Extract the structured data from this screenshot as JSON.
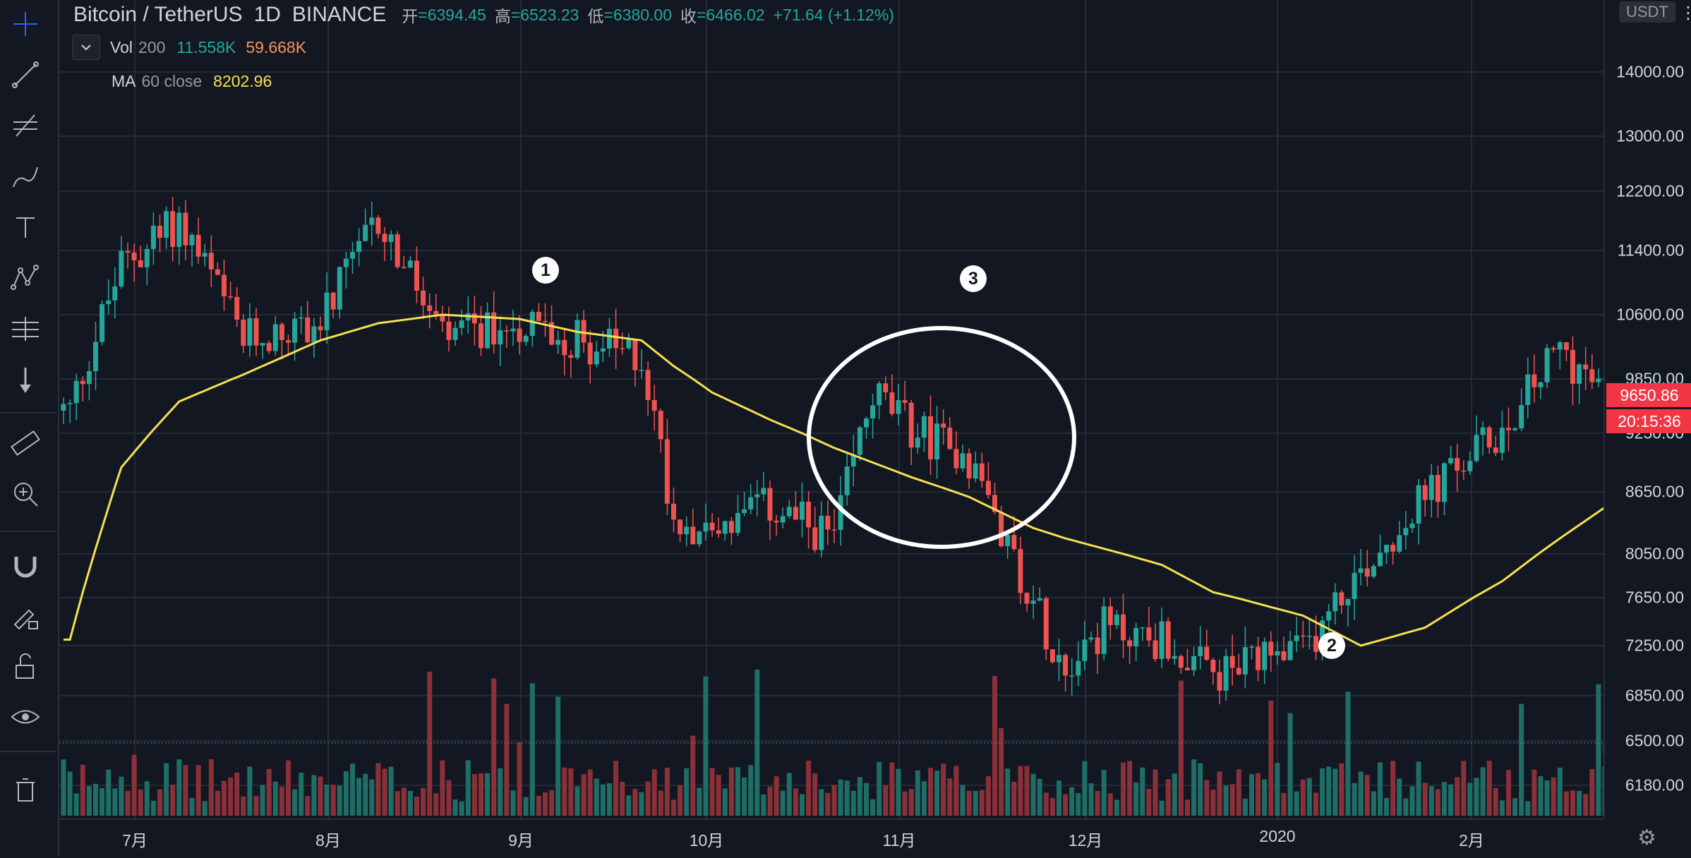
{
  "header": {
    "symbol": "Bitcoin / TetherUS",
    "interval": "1D",
    "exchange": "BINANCE",
    "open_label": "开",
    "open": "=6394.45",
    "high_label": "高",
    "high": "=6523.23",
    "low_label": "低",
    "low": "=6380.00",
    "close_label": "收",
    "close": "=6466.02",
    "change": "+71.64 (+1.12%)"
  },
  "indicators": {
    "volume": {
      "name": "Vol",
      "param": "200",
      "value1": "11.558K",
      "value2": "59.668K"
    },
    "ma": {
      "name": "MA",
      "param": "60 close",
      "value": "8202.96"
    }
  },
  "price_axis": {
    "currency": "USDT",
    "ticks": [
      "14000.00",
      "13000.00",
      "12200.00",
      "11400.00",
      "10600.00",
      "9850.00",
      "9250.00",
      "8650.00",
      "8050.00",
      "7650.00",
      "7250.00",
      "6850.00",
      "6500.00",
      "6180.00"
    ],
    "last_price": "9650.86",
    "countdown": "20:15:36"
  },
  "time_axis": {
    "ticks": [
      "7月",
      "8月",
      "9月",
      "10月",
      "11月",
      "12月",
      "2020",
      "2月"
    ]
  },
  "annotations": {
    "markers": [
      "1",
      "2",
      "3"
    ]
  },
  "colors": {
    "up": "#26a69a",
    "down": "#ef5350",
    "ma": "#f5e050",
    "background": "#131722"
  },
  "toolbar": {
    "icons": [
      "crosshair-icon",
      "trend-line-icon",
      "fib-icon",
      "brush-icon",
      "text-icon",
      "pattern-icon",
      "forecast-icon",
      "arrow-down-icon",
      "ruler-icon",
      "zoom-in-icon",
      "magnet-icon",
      "lock-drawing-icon",
      "unlock-icon",
      "eye-icon",
      "trash-icon"
    ]
  },
  "chart_data": {
    "type": "candlestick",
    "x": [
      "2019-06-23",
      "2019-07-01",
      "2019-07-10",
      "2019-07-20",
      "2019-08-01",
      "2019-08-10",
      "2019-08-20",
      "2019-09-01",
      "2019-09-10",
      "2019-09-20",
      "2019-09-25",
      "2019-10-01",
      "2019-10-10",
      "2019-10-20",
      "2019-10-26",
      "2019-11-01",
      "2019-11-10",
      "2019-11-20",
      "2019-11-25",
      "2019-12-01",
      "2019-12-10",
      "2019-12-18",
      "2020-01-01",
      "2020-01-10",
      "2020-01-20",
      "2020-02-01",
      "2020-02-10",
      "2020-02-17"
    ],
    "close": [
      9500,
      11200,
      11800,
      10300,
      10500,
      11800,
      10300,
      10500,
      10300,
      10100,
      8400,
      8300,
      8500,
      8200,
      9700,
      9300,
      9000,
      7600,
      7100,
      7400,
      7300,
      7000,
      7200,
      7900,
      8600,
      9300,
      10200,
      9650.86
    ],
    "ma60": [
      7300,
      8900,
      9600,
      9900,
      10300,
      10500,
      10600,
      10550,
      10400,
      10300,
      10000,
      9700,
      9400,
      9100,
      8950,
      8800,
      8600,
      8300,
      8200,
      8100,
      7950,
      7700,
      7500,
      7250,
      7400,
      7800,
      8200,
      8500
    ],
    "series": [
      {
        "name": "MA 60 close"
      }
    ],
    "ylim": [
      6000,
      14500
    ],
    "ylabel": "",
    "xlabel": "",
    "grid": true
  }
}
